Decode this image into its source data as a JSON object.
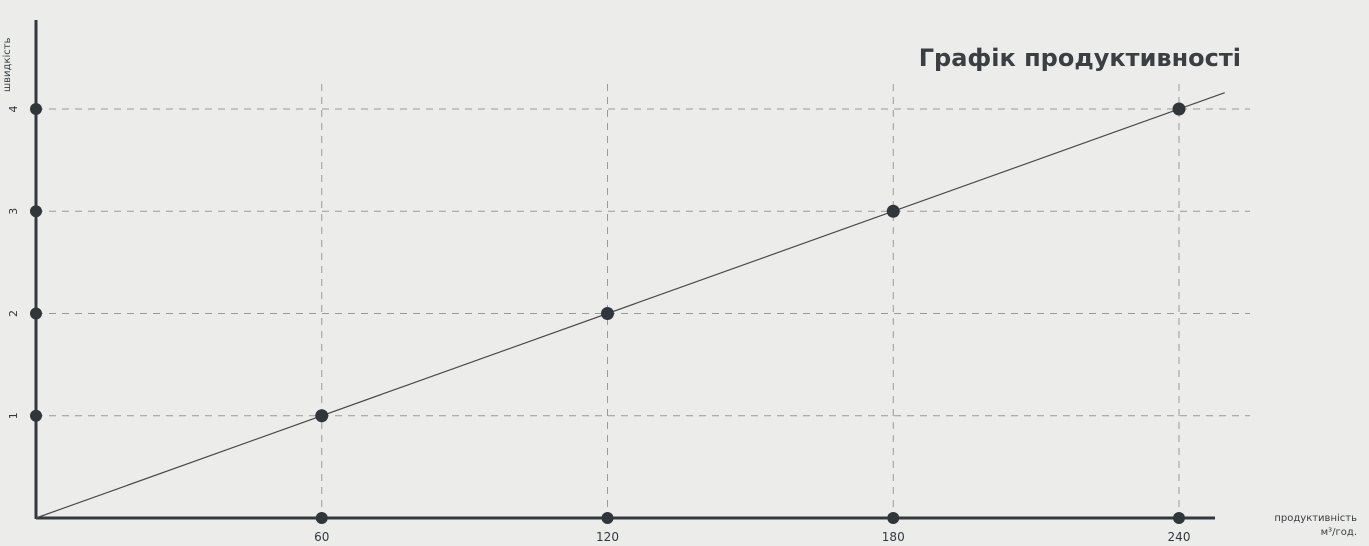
{
  "chart_data": {
    "type": "line",
    "title": "Графік продуктивності",
    "xlabel": "продуктивність",
    "xunit": "м³/год.",
    "ylabel": "швидкість",
    "x_ticks": [
      60,
      120,
      180,
      240
    ],
    "y_ticks": [
      1,
      2,
      3,
      4
    ],
    "xlim": [
      0,
      240
    ],
    "ylim": [
      0,
      4
    ],
    "grid": true,
    "series": [
      {
        "x": [
          0,
          60,
          120,
          180,
          240
        ],
        "y": [
          0,
          1,
          2,
          3,
          4
        ]
      }
    ],
    "colors": {
      "axis": "#323a40",
      "grid": "#9a9a9a",
      "line": "#4a4a4a",
      "point": "#2f363c"
    }
  }
}
